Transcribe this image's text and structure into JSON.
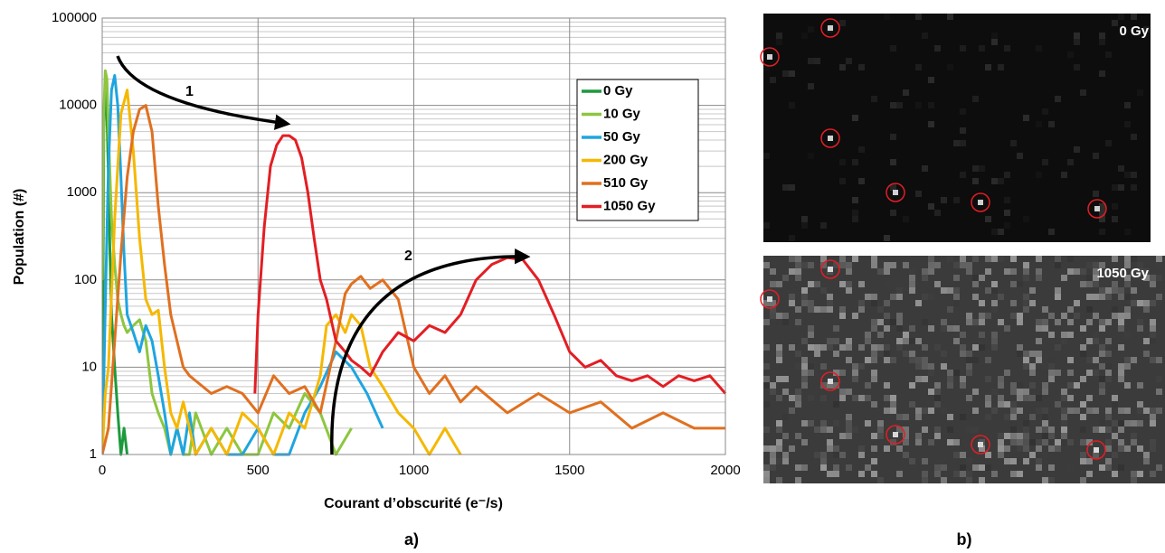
{
  "chart_data": {
    "type": "line",
    "xlabel": "Courant d’obscurité (e⁻/s)",
    "ylabel": "Population (#)",
    "xlim": [
      0,
      2000
    ],
    "xticks": [
      0,
      500,
      1000,
      1500,
      2000
    ],
    "ylim": [
      1,
      100000
    ],
    "yticks": [
      1,
      10,
      100,
      1000,
      10000,
      100000
    ],
    "ylog": true,
    "grid": true,
    "minor_grid": true,
    "legend": "upper right",
    "annotations": [
      {
        "text": "1"
      },
      {
        "text": "2"
      }
    ],
    "series": [
      {
        "name": "0 Gy",
        "color": "#1d9a3c",
        "x": [
          0,
          5,
          10,
          15,
          20,
          25,
          30,
          40,
          50,
          60,
          70,
          80
        ],
        "values": [
          1,
          5000,
          20000,
          8000,
          1500,
          200,
          40,
          10,
          3,
          1,
          2,
          1
        ]
      },
      {
        "name": "10 Gy",
        "color": "#8dc63f",
        "x": [
          0,
          5,
          10,
          15,
          20,
          30,
          40,
          50,
          60,
          70,
          80,
          100,
          120,
          140,
          160,
          180,
          200,
          220,
          240,
          260,
          280,
          300,
          350,
          400,
          450,
          500,
          550,
          600,
          650,
          700,
          750,
          800
        ],
        "values": [
          100,
          8000,
          25000,
          20000,
          5000,
          500,
          150,
          60,
          40,
          30,
          25,
          30,
          35,
          20,
          5,
          3,
          2,
          1,
          2,
          1,
          1,
          3,
          1,
          2,
          1,
          1,
          3,
          2,
          5,
          3,
          1,
          2
        ]
      },
      {
        "name": "50 Gy",
        "color": "#1ea5e0",
        "x": [
          0,
          10,
          20,
          30,
          40,
          50,
          60,
          70,
          80,
          100,
          120,
          140,
          160,
          180,
          200,
          220,
          240,
          260,
          280,
          300,
          350,
          400,
          450,
          500,
          550,
          600,
          650,
          700,
          750,
          800,
          850,
          900
        ],
        "values": [
          1,
          50,
          2000,
          15000,
          22000,
          10000,
          1500,
          200,
          40,
          25,
          15,
          30,
          20,
          8,
          3,
          1,
          2,
          1,
          3,
          1,
          2,
          1,
          1,
          2,
          1,
          1,
          3,
          6,
          15,
          10,
          5,
          2
        ]
      },
      {
        "name": "200 Gy",
        "color": "#f5b800",
        "x": [
          0,
          10,
          20,
          40,
          60,
          80,
          100,
          120,
          140,
          160,
          180,
          200,
          220,
          240,
          260,
          280,
          300,
          350,
          400,
          450,
          500,
          550,
          600,
          650,
          700,
          720,
          750,
          780,
          800,
          830,
          860,
          900,
          950,
          1000,
          1050,
          1100,
          1150
        ],
        "values": [
          1,
          5,
          10,
          500,
          8000,
          15000,
          3000,
          300,
          60,
          40,
          45,
          10,
          3,
          2,
          4,
          2,
          1,
          2,
          1,
          3,
          2,
          1,
          3,
          2,
          8,
          30,
          40,
          25,
          40,
          30,
          10,
          6,
          3,
          2,
          1,
          2,
          1
        ]
      },
      {
        "name": "510 Gy",
        "color": "#e07020",
        "x": [
          0,
          20,
          40,
          60,
          80,
          100,
          120,
          140,
          160,
          180,
          200,
          220,
          240,
          260,
          280,
          300,
          350,
          400,
          450,
          500,
          550,
          600,
          650,
          700,
          750,
          780,
          800,
          830,
          860,
          900,
          950,
          1000,
          1050,
          1100,
          1150,
          1200,
          1300,
          1400,
          1500,
          1600,
          1700,
          1800,
          1900,
          2000
        ],
        "values": [
          1,
          2,
          20,
          200,
          1500,
          5000,
          9000,
          10000,
          5000,
          700,
          150,
          40,
          20,
          10,
          8,
          7,
          5,
          6,
          5,
          3,
          8,
          5,
          6,
          3,
          20,
          70,
          90,
          110,
          80,
          100,
          60,
          10,
          5,
          8,
          4,
          6,
          3,
          5,
          3,
          4,
          2,
          3,
          2,
          2
        ]
      },
      {
        "name": "1050 Gy",
        "color": "#e31e24",
        "x": [
          490,
          500,
          520,
          540,
          560,
          580,
          600,
          620,
          640,
          660,
          680,
          700,
          720,
          750,
          780,
          800,
          830,
          860,
          900,
          950,
          1000,
          1050,
          1100,
          1150,
          1200,
          1250,
          1300,
          1350,
          1400,
          1450,
          1500,
          1550,
          1600,
          1650,
          1700,
          1750,
          1800,
          1850,
          1900,
          1950,
          2000
        ],
        "values": [
          5,
          40,
          400,
          2000,
          3500,
          4500,
          4500,
          4000,
          2500,
          1000,
          300,
          100,
          60,
          20,
          15,
          12,
          10,
          8,
          15,
          25,
          20,
          30,
          25,
          40,
          100,
          150,
          180,
          170,
          100,
          40,
          15,
          10,
          12,
          8,
          7,
          8,
          6,
          8,
          7,
          8,
          5
        ]
      }
    ]
  },
  "figure": {
    "panel_labels": [
      "a)",
      "b)"
    ],
    "images": [
      {
        "label": "0 Gy"
      },
      {
        "label": "1050 Gy"
      }
    ]
  }
}
